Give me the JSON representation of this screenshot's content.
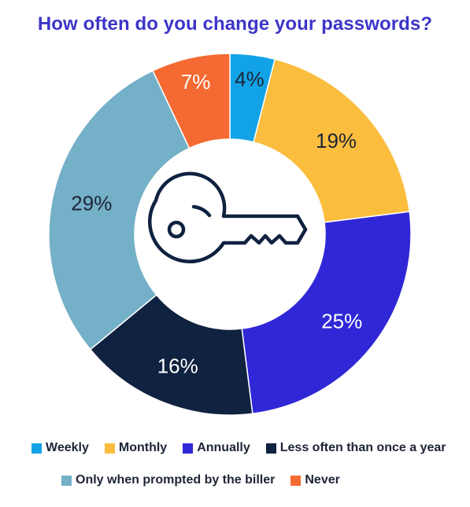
{
  "chart_data": {
    "type": "pie",
    "title": "How often do you change your passwords?",
    "donut": true,
    "center_icon": "key-icon",
    "categories": [
      "Weekly",
      "Monthly",
      "Annually",
      "Less often than once a year",
      "Only when prompted by the biller",
      "Never"
    ],
    "values": [
      4,
      19,
      25,
      16,
      29,
      7
    ],
    "value_labels": [
      "4%",
      "19%",
      "25%",
      "16%",
      "29%",
      "7%"
    ],
    "colors": [
      "#12a3e6",
      "#fbbd3e",
      "#3028d6",
      "#0f2240",
      "#74b0c7",
      "#f46a32"
    ],
    "label_colors": [
      "#1d2436",
      "#1d2436",
      "#ffffff",
      "#ffffff",
      "#1d2436",
      "#ffffff"
    ],
    "legend_placement": "bottom"
  }
}
